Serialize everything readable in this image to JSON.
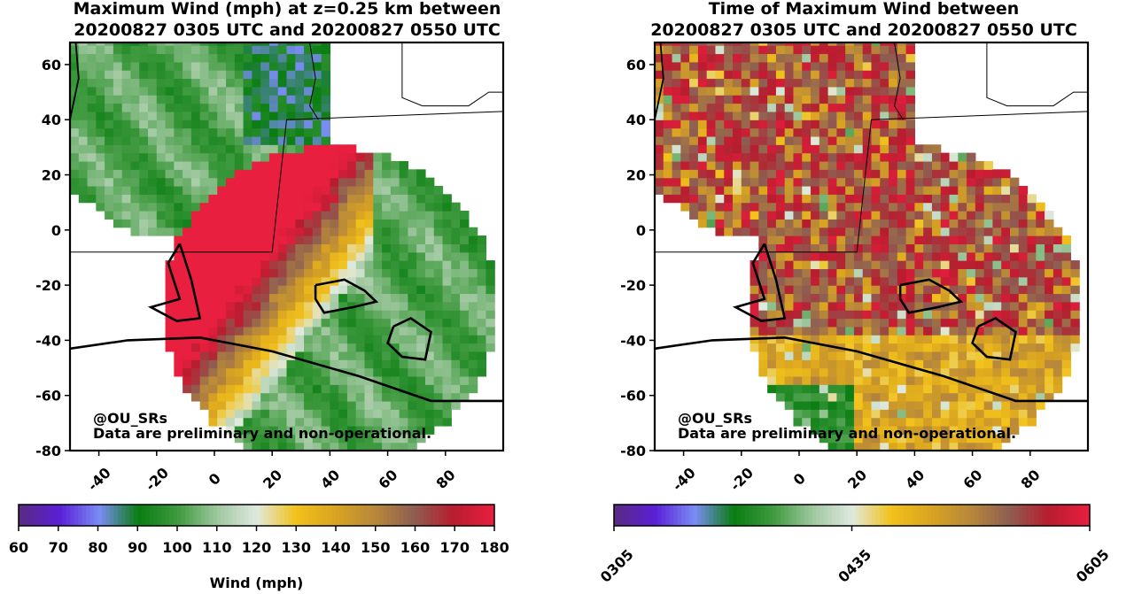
{
  "left_panel": {
    "title_line1": "Maximum Wind (mph) at z=0.25 km between",
    "title_line2": "20200827 0305 UTC and 20200827 0550 UTC",
    "watermark_handle": "@OU_SRs",
    "watermark_disclaimer": "Data are preliminary and non-operational."
  },
  "right_panel": {
    "title_line1": "Time of Maximum Wind between",
    "title_line2": "20200827 0305 UTC and 20200827 0550 UTC",
    "watermark_handle": "@OU_SRs",
    "watermark_disclaimer": "Data are preliminary and non-operational."
  },
  "chart_data": [
    {
      "type": "heatmap",
      "title": "Maximum Wind (mph) at z=0.25 km between 20200827 0305 UTC and 20200827 0550 UTC",
      "xlim": [
        -50,
        100
      ],
      "ylim": [
        -80,
        68
      ],
      "xticks": [
        -40,
        -20,
        0,
        20,
        40,
        60,
        80
      ],
      "yticks": [
        60,
        40,
        20,
        0,
        -20,
        -40,
        -60,
        -80
      ],
      "colorbar": {
        "label": "Wind (mph)",
        "range": [
          60,
          180
        ],
        "ticks": [
          "60",
          "70",
          "80",
          "90",
          "100",
          "110",
          "120",
          "130",
          "140",
          "150",
          "160",
          "170",
          "180"
        ],
        "colors": [
          "#5a2a85",
          "#5a1fd6",
          "#7a8cf5",
          "#0a7d12",
          "#3f9a3f",
          "#9ec79e",
          "#dfe9df",
          "#f2c21b",
          "#d9a420",
          "#b8883a",
          "#8e5e52",
          "#b81d2f",
          "#e81f3f"
        ]
      }
    },
    {
      "type": "heatmap",
      "title": "Time of Maximum Wind between 20200827 0305 UTC and 20200827 0550 UTC",
      "xlim": [
        -50,
        100
      ],
      "ylim": [
        -80,
        68
      ],
      "xticks": [
        -40,
        -20,
        0,
        20,
        40,
        60,
        80
      ],
      "yticks": [
        60,
        40,
        20,
        0,
        -20,
        -40,
        -60,
        -80
      ],
      "colorbar": {
        "label": "",
        "range": [
          "0305",
          "0605"
        ],
        "ticks": [
          "0305",
          "0435",
          "0605"
        ],
        "colors": [
          "#5a2a85",
          "#5a1fd6",
          "#7a8cf5",
          "#0a7d12",
          "#3f9a3f",
          "#9ec79e",
          "#dfe9df",
          "#f2c21b",
          "#d9a420",
          "#b8883a",
          "#8e5e52",
          "#b81d2f",
          "#e81f3f"
        ]
      }
    }
  ]
}
